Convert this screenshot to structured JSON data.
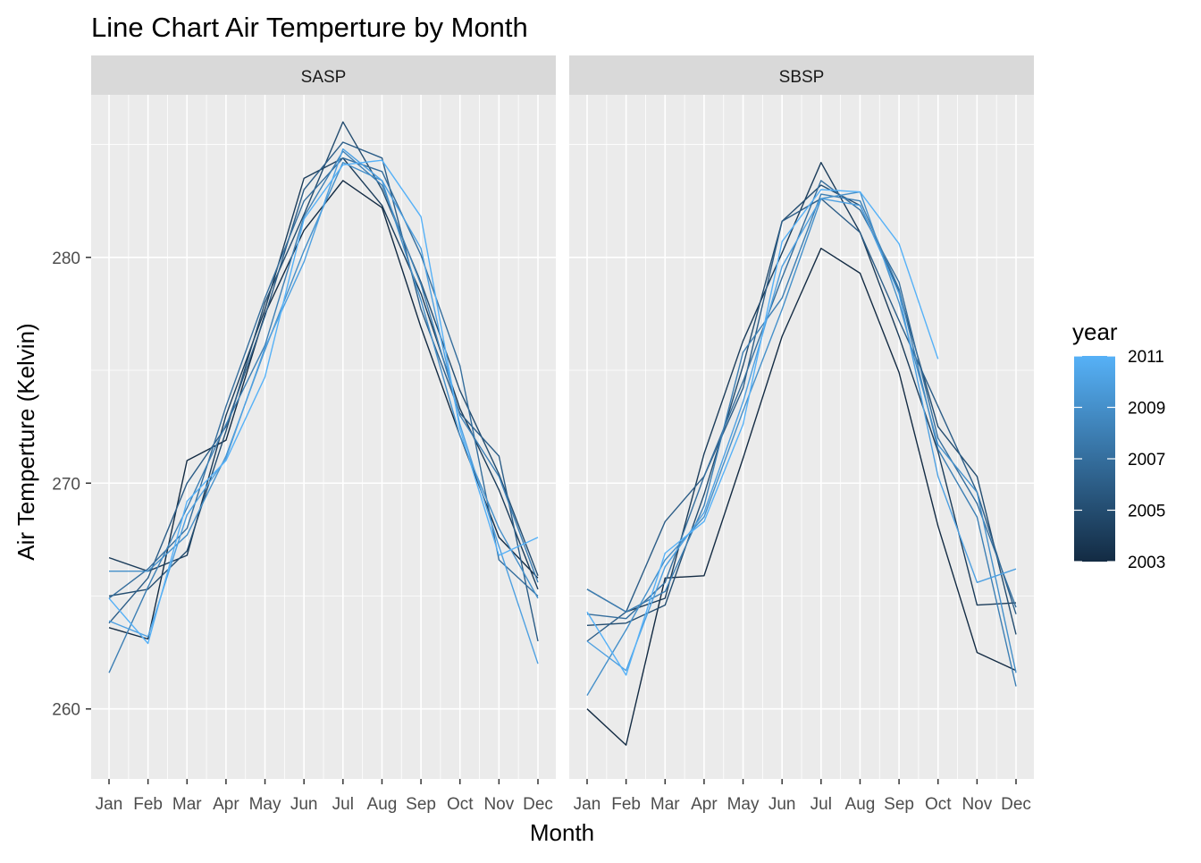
{
  "chart_data": {
    "type": "line",
    "title": "Line Chart Air Temperture by Month",
    "xlabel": "Month",
    "ylabel": "Air Temperture (Kelvin)",
    "categories": [
      "Jan",
      "Feb",
      "Mar",
      "Apr",
      "May",
      "Jun",
      "Jul",
      "Aug",
      "Sep",
      "Oct",
      "Nov",
      "Dec"
    ],
    "ylim": [
      256.9,
      287.2
    ],
    "y_ticks": [
      260,
      270,
      280
    ],
    "grid": true,
    "legend": {
      "title": "year",
      "position": "right",
      "type": "colorbar",
      "breaks": [
        2011,
        2009,
        2007,
        2005,
        2003
      ],
      "range": [
        2003,
        2011
      ],
      "color_low": "#132B43",
      "color_high": "#56B1F7"
    },
    "panels": [
      {
        "name": "SASP",
        "series": [
          {
            "year": 2003,
            "values": [
              263.6,
              263.1,
              271.0,
              271.9,
              277.5,
              281.2,
              283.4,
              282.2,
              276.9,
              272.1,
              267.6,
              265.8
            ]
          },
          {
            "year": 2004,
            "values": [
              266.7,
              266.1,
              266.8,
              273.0,
              277.7,
              283.5,
              284.4,
              282.3,
              278.4,
              273.3,
              269.7,
              265.3
            ]
          },
          {
            "year": 2005,
            "values": [
              265.0,
              265.3,
              267.0,
              272.3,
              278.0,
              281.9,
              286.0,
              283.0,
              278.9,
              274.1,
              270.4,
              265.9
            ]
          },
          {
            "year": 2006,
            "values": [
              263.8,
              265.8,
              270.0,
              272.5,
              277.4,
              283.0,
              285.1,
              284.4,
              277.7,
              273.1,
              271.2,
              263.0
            ]
          },
          {
            "year": 2007,
            "values": [
              264.9,
              266.2,
              268.0,
              273.4,
              278.2,
              282.5,
              284.4,
              283.8,
              280.1,
              275.2,
              266.6,
              265.0
            ]
          },
          {
            "year": 2008,
            "values": [
              261.6,
              265.4,
              268.9,
              272.6,
              276.1,
              281.8,
              284.7,
              283.2,
              278.8,
              273.0,
              270.3,
              265.6
            ]
          },
          {
            "year": 2009,
            "values": [
              266.1,
              266.1,
              267.7,
              271.2,
              275.9,
              280.3,
              284.2,
              283.4,
              278.1,
              272.1,
              268.0,
              264.9
            ]
          },
          {
            "year": 2010,
            "values": [
              263.9,
              263.2,
              268.6,
              271.1,
              276.0,
              279.8,
              284.8,
              283.4,
              280.4,
              272.6,
              267.2,
              262.0
            ]
          },
          {
            "year": 2011,
            "values": [
              264.9,
              262.9,
              269.2,
              271.0,
              274.7,
              281.7,
              284.1,
              284.3,
              281.8,
              272.4,
              266.8,
              267.6
            ]
          }
        ]
      },
      {
        "name": "SBSP",
        "series": [
          {
            "year": 2003,
            "values": [
              260.0,
              258.4,
              265.8,
              265.9,
              271.1,
              276.5,
              280.4,
              279.3,
              274.9,
              268.1,
              262.5,
              261.7
            ]
          },
          {
            "year": 2004,
            "values": [
              265.3,
              264.3,
              264.9,
              271.3,
              276.3,
              280.2,
              284.2,
              281.1,
              276.5,
              271.4,
              264.6,
              264.7
            ]
          },
          {
            "year": 2005,
            "values": [
              263.7,
              263.8,
              264.6,
              269.5,
              275.2,
              281.6,
              283.2,
              282.3,
              278.5,
              272.5,
              270.3,
              263.3
            ]
          },
          {
            "year": 2006,
            "values": [
              263.0,
              264.3,
              268.3,
              270.3,
              274.2,
              281.6,
              282.6,
              281.1,
              277.2,
              273.4,
              269.6,
              264.2
            ]
          },
          {
            "year": 2007,
            "values": [
              264.2,
              264.0,
              265.6,
              270.3,
              274.5,
              279.1,
              283.4,
              282.1,
              278.9,
              272.0,
              269.1,
              264.5
            ]
          },
          {
            "year": 2008,
            "values": [
              265.3,
              264.3,
              265.2,
              269.0,
              275.8,
              278.2,
              282.8,
              282.5,
              278.6,
              271.5,
              268.5,
              261.0
            ]
          },
          {
            "year": 2009,
            "values": [
              260.6,
              263.5,
              266.6,
              268.5,
              273.2,
              277.7,
              282.6,
              282.9,
              278.0,
              271.7,
              269.6,
              261.6
            ]
          },
          {
            "year": 2010,
            "values": [
              263.0,
              261.7,
              266.3,
              268.7,
              273.6,
              279.6,
              282.6,
              282.3,
              278.4,
              270.3,
              265.6,
              266.2
            ]
          },
          {
            "year": 2011,
            "values": [
              264.3,
              261.5,
              266.9,
              268.3,
              272.6,
              280.7,
              283.0,
              282.9,
              280.6,
              275.5,
              null,
              null
            ]
          }
        ]
      }
    ]
  }
}
